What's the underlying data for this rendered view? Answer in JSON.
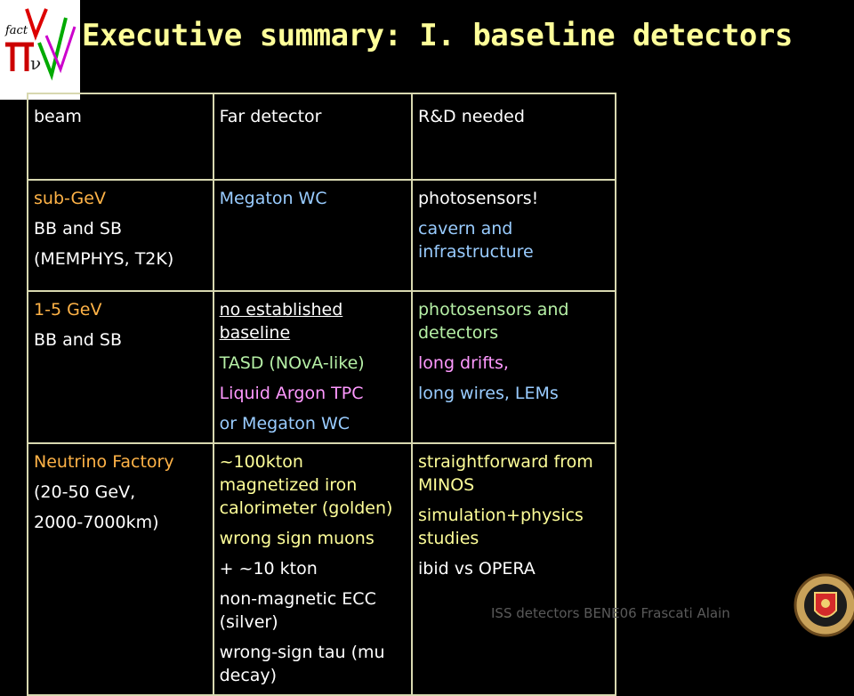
{
  "title": "Executive summary: I. baseline detectors",
  "table": {
    "headers": [
      "beam",
      "Far detector",
      "R&D needed"
    ],
    "rows": [
      {
        "beam": [
          "sub-GeV",
          "BB and SB",
          "(MEMPHYS, T2K)"
        ],
        "far": [
          "Megaton WC"
        ],
        "rnd": [
          "photosensors!",
          "cavern and infrastructure"
        ]
      },
      {
        "beam": [
          "1-5 GeV",
          "BB and SB"
        ],
        "far": [
          "no established baseline",
          "TASD (NOvA-like)",
          "Liquid Argon TPC",
          "or Megaton WC"
        ],
        "rnd": [
          "photosensors and detectors",
          "long drifts,",
          "long wires, LEMs"
        ]
      },
      {
        "beam": [
          "Neutrino Factory",
          "(20-50 GeV,",
          "2000-7000km)"
        ],
        "far": [
          "~100kton magnetized iron calorimeter (golden)",
          "wrong sign muons",
          "+ ~10 kton",
          "non-magnetic ECC (silver)",
          "wrong-sign tau (mu decay)"
        ],
        "rnd": [
          "straightforward from MINOS",
          "simulation+physics studies",
          "ibid vs OPERA"
        ]
      }
    ]
  },
  "footer": "ISS detectors  BENE06 Frascati     Alain",
  "logo_text": "fact",
  "colors": {
    "title": "#ffff99",
    "background": "#000000",
    "orange": "#ffb347",
    "blue": "#99ccff",
    "green": "#b6f0a6",
    "pink": "#ff99ff"
  }
}
